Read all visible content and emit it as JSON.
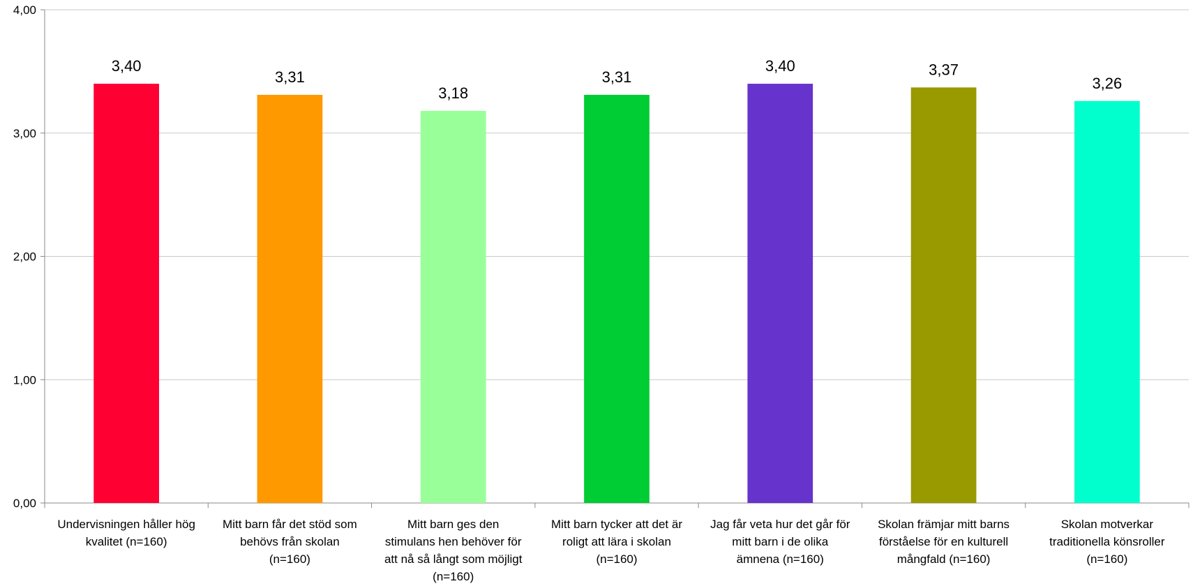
{
  "chart_data": {
    "type": "bar",
    "ylim": [
      0,
      4
    ],
    "y_ticks": [
      "0,00",
      "1,00",
      "2,00",
      "3,00",
      "4,00"
    ],
    "y_tick_values": [
      0,
      1,
      2,
      3,
      4
    ],
    "grid": true,
    "legend": "none",
    "categories": [
      [
        "Undervisningen håller hög",
        "kvalitet (n=160)"
      ],
      [
        "Mitt barn får det stöd som",
        "behövs från skolan",
        "(n=160)"
      ],
      [
        "Mitt barn ges den",
        "stimulans hen behöver för",
        "att nå så långt som möjligt",
        "(n=160)"
      ],
      [
        "Mitt barn tycker att det är",
        "roligt att lära i skolan",
        "(n=160)"
      ],
      [
        "Jag får veta hur det går för",
        "mitt barn i de olika",
        "ämnena (n=160)"
      ],
      [
        "Skolan främjar mitt barns",
        "förståelse för en kulturell",
        "mångfald (n=160)"
      ],
      [
        "Skolan motverkar",
        "traditionella könsroller",
        "(n=160)"
      ]
    ],
    "values": [
      3.4,
      3.31,
      3.18,
      3.31,
      3.4,
      3.37,
      3.26
    ],
    "value_labels": [
      "3,40",
      "3,31",
      "3,18",
      "3,31",
      "3,40",
      "3,37",
      "3,26"
    ],
    "colors": [
      "#ff0033",
      "#ff9900",
      "#99ff99",
      "#00cc33",
      "#6633cc",
      "#999900",
      "#00ffcc"
    ]
  }
}
